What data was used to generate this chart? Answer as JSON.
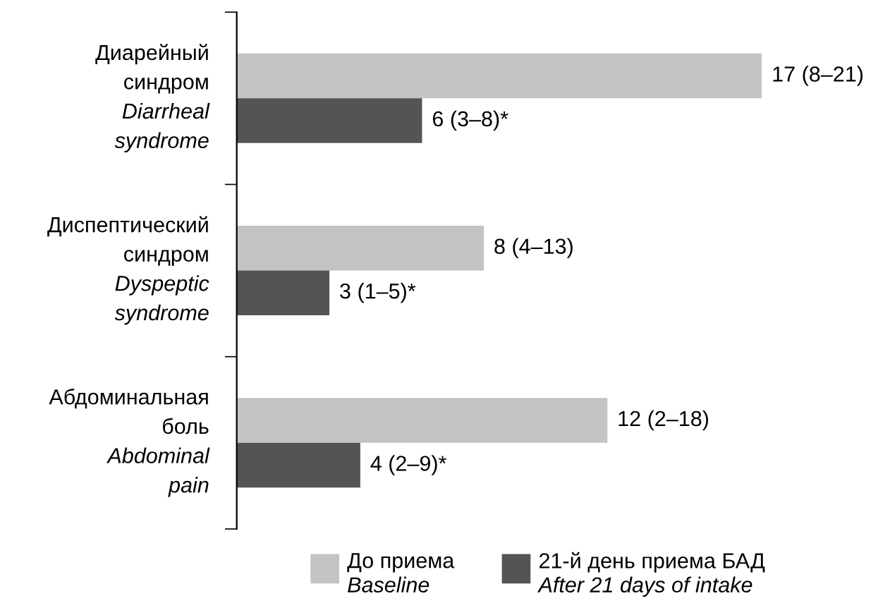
{
  "chart_data": {
    "type": "bar",
    "orientation": "horizontal",
    "legend": "bottom",
    "categories": [
      "Диарейный\nсиндром\nDiarrheal\nsyndrome",
      "Диспептический\nсиндром\nDyspeptic\nsyndrome",
      "Абдоминальная\nболь\nAbdominal\npain"
    ],
    "series": [
      {
        "name": "До приема\nBaseline",
        "color": "#c3c3c5",
        "values": [
          17,
          8,
          12
        ],
        "value_labels": [
          "17 (8–21)",
          "8 (4–13)",
          "12 (2–18)"
        ]
      },
      {
        "name": "21-й день приема БАД\nAfter 21 days of intake",
        "color": "#545456",
        "values": [
          6,
          3,
          4
        ],
        "value_labels": [
          "6 (3–8)*",
          "3 (1–5)*",
          "4 (2–9)*"
        ]
      }
    ]
  }
}
